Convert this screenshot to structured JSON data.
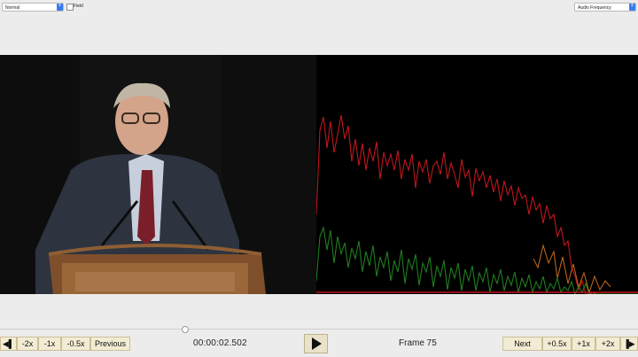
{
  "top": {
    "mode_select": "Normal",
    "field_label": "Field",
    "view_select": "Audio Frequency"
  },
  "playback": {
    "timecode": "00:00:02.502",
    "frame_label": "Frame 75"
  },
  "buttons": {
    "step_back_icon": "step-back-icon",
    "minus2x": "-2x",
    "minus1x": "-1x",
    "minus05x": "-0.5x",
    "previous": "Previous",
    "next": "Next",
    "plus05x": "+0.5x",
    "plus1x": "+1x",
    "plus2x": "+2x",
    "step_forward_icon": "step-forward-icon",
    "play_icon": "play-icon"
  },
  "colors": {
    "spectrum_red": "#c0161c",
    "spectrum_green": "#1f7f1f",
    "spectrum_orange": "#c96a1a"
  }
}
